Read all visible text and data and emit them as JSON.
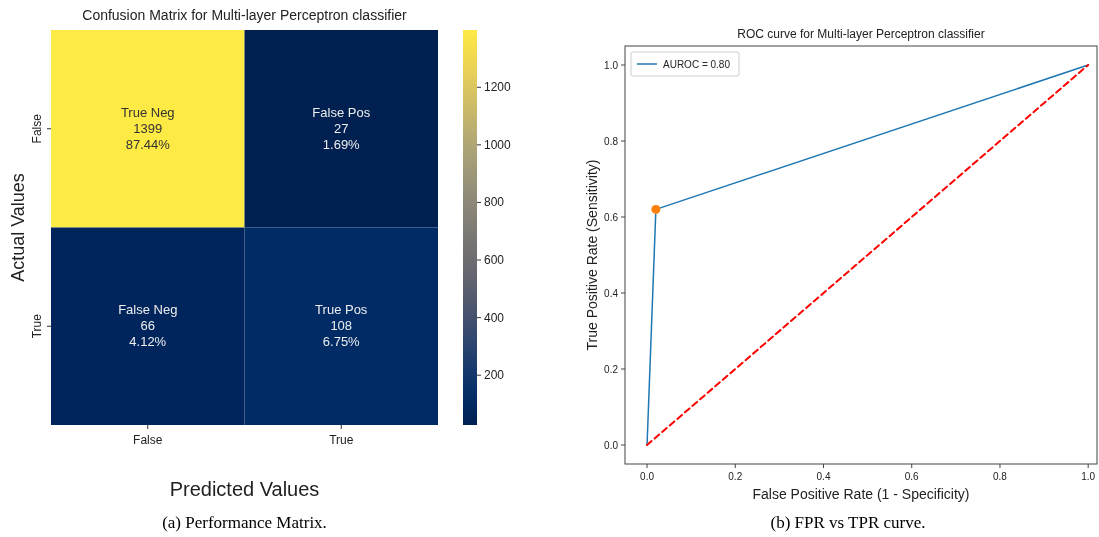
{
  "chart_data": [
    {
      "type": "heatmap",
      "title": "Confusion Matrix for Multi-layer Perceptron classifier",
      "xlabel": "Predicted Values",
      "ylabel": "Actual Values",
      "categories": [
        "False",
        "True"
      ],
      "y_categories": [
        "False",
        "True"
      ],
      "cells": [
        [
          1399,
          27
        ],
        [
          66,
          108
        ]
      ],
      "cell_labels": [
        [
          "True Neg\n1399\n87.44%",
          "False Pos\n27\n1.69%"
        ],
        [
          "False Neg\n66\n4.12%",
          "True Pos\n108\n6.75%"
        ]
      ],
      "clim": [
        27,
        1399
      ],
      "cticks": [
        200,
        400,
        600,
        800,
        1000,
        1200
      ],
      "annotations": [
        "(a) Performance Matrix."
      ]
    },
    {
      "type": "line",
      "title": "ROC curve for Multi-layer Perceptron classifier",
      "xlabel": "False Positive Rate (1 - Specificity)",
      "ylabel": "True Positive Rate (Sensitivity)",
      "xlim": [
        -0.05,
        1.02
      ],
      "ylim": [
        -0.05,
        1.05
      ],
      "xticks": [
        {
          "value": 0,
          "label": "0.0"
        },
        0.2,
        0.4,
        0.6,
        0.8,
        {
          "value": 1,
          "label": "1.0"
        }
      ],
      "yticks": [
        {
          "value": 0,
          "label": "0.0"
        },
        0.2,
        0.4,
        0.6,
        0.8,
        {
          "value": 1,
          "label": "1.0"
        }
      ],
      "series": [
        {
          "name": "AUROC = 0.80",
          "type": "line",
          "color": "#1f77b4",
          "x": [
            0,
            0.02,
            1
          ],
          "values": [
            0,
            0.62,
            1
          ],
          "line_style": "solid"
        },
        {
          "type": "line",
          "color": "#ff0000",
          "x": [
            0,
            1
          ],
          "values": [
            0,
            1
          ],
          "line_style": "dashed"
        },
        {
          "type": "scatter",
          "color": "#ff7f0e",
          "x": [
            0.02
          ],
          "values": [
            0.62
          ],
          "marker": "circle"
        }
      ],
      "grid": false,
      "legend": "top left",
      "annotations": [
        "(b) FPR vs TPR curve."
      ]
    }
  ]
}
